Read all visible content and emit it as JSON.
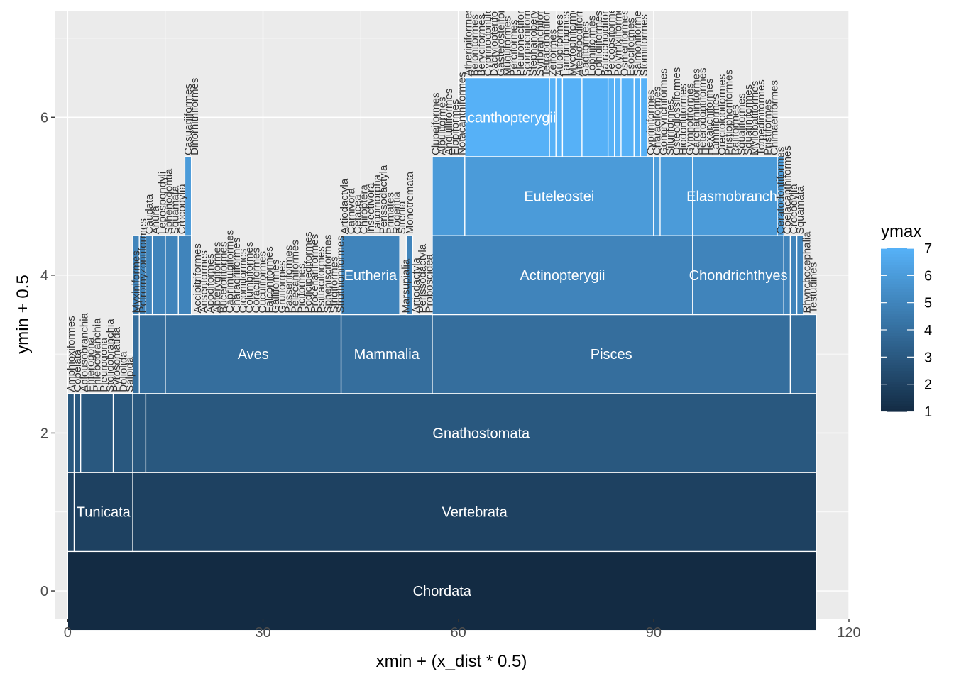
{
  "chart_data": {
    "type": "rect",
    "xlabel": "xmin + (x_dist * 0.5)",
    "ylabel": "ymin + 0.5",
    "xlim": [
      -2,
      120
    ],
    "ylim": [
      -0.35,
      7.35
    ],
    "x_ticks": [
      0,
      30,
      60,
      90,
      120
    ],
    "y_ticks": [
      0,
      2,
      4,
      6
    ],
    "grid": true,
    "legend": {
      "title": "ymax",
      "position": "right",
      "range": [
        1,
        7
      ],
      "ticks": [
        1,
        2,
        3,
        4,
        5,
        6,
        7
      ],
      "low_color": "#132B43",
      "high_color": "#56B1F7"
    },
    "rects": [
      {
        "x0": 0,
        "x1": 115,
        "level": 0,
        "label": "Chordata"
      },
      {
        "x0": 0,
        "x1": 1,
        "level": 1
      },
      {
        "x0": 1,
        "x1": 10,
        "level": 1,
        "label": "Tunicata"
      },
      {
        "x0": 10,
        "x1": 115,
        "level": 1,
        "label": "Vertebrata"
      },
      {
        "x0": 0,
        "x1": 1,
        "level": 2
      },
      {
        "x0": 1,
        "x1": 2,
        "level": 2
      },
      {
        "x0": 2,
        "x1": 7,
        "level": 2
      },
      {
        "x0": 7,
        "x1": 10,
        "level": 2
      },
      {
        "x0": 10,
        "x1": 12,
        "level": 2
      },
      {
        "x0": 12,
        "x1": 115,
        "level": 2,
        "label": "Gnathostomata"
      },
      {
        "x0": 10,
        "x1": 11,
        "level": 3
      },
      {
        "x0": 11,
        "x1": 15,
        "level": 3
      },
      {
        "x0": 15,
        "x1": 42,
        "level": 3,
        "label": "Aves"
      },
      {
        "x0": 42,
        "x1": 56,
        "level": 3,
        "label": "Mammalia"
      },
      {
        "x0": 56,
        "x1": 111,
        "level": 3,
        "label": "Pisces"
      },
      {
        "x0": 111,
        "x1": 115,
        "level": 3
      },
      {
        "x0": 10,
        "x1": 11,
        "level": 4
      },
      {
        "x0": 11,
        "x1": 12,
        "level": 4
      },
      {
        "x0": 12,
        "x1": 13,
        "level": 4
      },
      {
        "x0": 13,
        "x1": 15,
        "level": 4
      },
      {
        "x0": 15,
        "x1": 17,
        "level": 4
      },
      {
        "x0": 17,
        "x1": 19,
        "level": 4
      },
      {
        "x0": 42,
        "x1": 51,
        "level": 4,
        "label": "Eutheria"
      },
      {
        "x0": 52,
        "x1": 53,
        "level": 4
      },
      {
        "x0": 56,
        "x1": 96,
        "level": 4,
        "label": "Actinopterygii"
      },
      {
        "x0": 96,
        "x1": 110,
        "level": 4,
        "label": "Chondrichthyes"
      },
      {
        "x0": 110,
        "x1": 111,
        "level": 4
      },
      {
        "x0": 111,
        "x1": 112,
        "level": 4
      },
      {
        "x0": 112,
        "x1": 113,
        "level": 4
      },
      {
        "x0": 18,
        "x1": 19,
        "level": 5
      },
      {
        "x0": 56,
        "x1": 61,
        "level": 5
      },
      {
        "x0": 61,
        "x1": 90,
        "level": 5,
        "label": "Euteleostei"
      },
      {
        "x0": 90,
        "x1": 91,
        "level": 5
      },
      {
        "x0": 91,
        "x1": 96,
        "level": 5
      },
      {
        "x0": 96,
        "x1": 109,
        "level": 5,
        "label": "Elasmobranchii"
      },
      {
        "x0": 109,
        "x1": 110,
        "level": 5
      },
      {
        "x0": 61,
        "x1": 74,
        "level": 6,
        "label": "Acanthopterygii"
      },
      {
        "x0": 74,
        "x1": 75,
        "level": 6
      },
      {
        "x0": 75,
        "x1": 76,
        "level": 6
      },
      {
        "x0": 76,
        "x1": 79,
        "level": 6
      },
      {
        "x0": 79,
        "x1": 83,
        "level": 6
      },
      {
        "x0": 83,
        "x1": 84,
        "level": 6
      },
      {
        "x0": 84,
        "x1": 85,
        "level": 6
      },
      {
        "x0": 85,
        "x1": 87,
        "level": 6
      },
      {
        "x0": 87,
        "x1": 88,
        "level": 6
      },
      {
        "x0": 88,
        "x1": 89,
        "level": 6
      }
    ],
    "leaf_labels": [
      {
        "x": 0.5,
        "level": 3,
        "text": "Amphioxiformes"
      },
      {
        "x": 1.5,
        "level": 3,
        "text": "Copelata"
      },
      {
        "x": 2.5,
        "level": 3,
        "text": "Aplousobranchia"
      },
      {
        "x": 3.5,
        "level": 3,
        "text": "Enterogona"
      },
      {
        "x": 4.5,
        "level": 3,
        "text": "Phlebobranchia"
      },
      {
        "x": 5.5,
        "level": 3,
        "text": "Pleurogona"
      },
      {
        "x": 6.5,
        "level": 3,
        "text": "Stolidobranchia"
      },
      {
        "x": 7.5,
        "level": 3,
        "text": "Pyrosomatida"
      },
      {
        "x": 8.5,
        "level": 3,
        "text": "Doliolida"
      },
      {
        "x": 9.5,
        "level": 3,
        "text": "Salpida"
      },
      {
        "x": 10.5,
        "level": 4,
        "text": "Myxiniformes"
      },
      {
        "x": 11.5,
        "level": 4,
        "text": "Petromyzontiformes"
      },
      {
        "x": 12.5,
        "level": 5,
        "text": "Caudata"
      },
      {
        "x": 13.5,
        "level": 5,
        "text": "Anura"
      },
      {
        "x": 14.5,
        "level": 5,
        "text": "Lepospondyli"
      },
      {
        "x": 15.5,
        "level": 5,
        "text": "Sphenodontia"
      },
      {
        "x": 16.5,
        "level": 5,
        "text": "Squamata"
      },
      {
        "x": 17.5,
        "level": 5,
        "text": "Crocodylia"
      },
      {
        "x": 18.5,
        "level": 6,
        "text": "Casuariiformes"
      },
      {
        "x": 19.5,
        "level": 6,
        "text": "Dinornithiformes"
      },
      {
        "x": 19.9,
        "level": 4,
        "text": "Accipitriformes"
      },
      {
        "x": 20.9,
        "level": 4,
        "text": "Anseriformes"
      },
      {
        "x": 21.9,
        "level": 4,
        "text": "Apodiformes"
      },
      {
        "x": 22.9,
        "level": 4,
        "text": "Apterygiformes"
      },
      {
        "x": 23.9,
        "level": 4,
        "text": "Bucerotiformes"
      },
      {
        "x": 24.9,
        "level": 4,
        "text": "Caprimulgiformes"
      },
      {
        "x": 25.9,
        "level": 4,
        "text": "Charadriiformes"
      },
      {
        "x": 26.9,
        "level": 4,
        "text": "Ciconiiformes"
      },
      {
        "x": 27.9,
        "level": 4,
        "text": "Columbiformes"
      },
      {
        "x": 28.9,
        "level": 4,
        "text": "Coraciiformes"
      },
      {
        "x": 29.9,
        "level": 4,
        "text": "Cuculiformes"
      },
      {
        "x": 30.9,
        "level": 4,
        "text": "Falconiformes"
      },
      {
        "x": 31.9,
        "level": 4,
        "text": "Galliformes"
      },
      {
        "x": 32.9,
        "level": 4,
        "text": "Gruiformes"
      },
      {
        "x": 33.9,
        "level": 4,
        "text": "Passeriformes"
      },
      {
        "x": 34.9,
        "level": 4,
        "text": "Pelecaniformes"
      },
      {
        "x": 35.9,
        "level": 4,
        "text": "Piciformes"
      },
      {
        "x": 36.9,
        "level": 4,
        "text": "Podicipediformes"
      },
      {
        "x": 37.9,
        "level": 4,
        "text": "Procellariiformes"
      },
      {
        "x": 38.9,
        "level": 4,
        "text": "Psittaciformes"
      },
      {
        "x": 39.9,
        "level": 4,
        "text": "Sphenisciformes"
      },
      {
        "x": 40.9,
        "level": 4,
        "text": "Strigiformes"
      },
      {
        "x": 41.9,
        "level": 4,
        "text": "Struthioniformes"
      },
      {
        "x": 42.5,
        "level": 5,
        "text": "Artiodactyla"
      },
      {
        "x": 43.5,
        "level": 5,
        "text": "Carnivora"
      },
      {
        "x": 44.5,
        "level": 5,
        "text": "Cetacea"
      },
      {
        "x": 45.5,
        "level": 5,
        "text": "Chiroptera"
      },
      {
        "x": 46.5,
        "level": 5,
        "text": "Insectivora"
      },
      {
        "x": 47.5,
        "level": 5,
        "text": "Lagomorpha"
      },
      {
        "x": 48.5,
        "level": 5,
        "text": "Perissodactyla"
      },
      {
        "x": 49.5,
        "level": 5,
        "text": "Primates"
      },
      {
        "x": 50.5,
        "level": 5,
        "text": "Rodentia"
      },
      {
        "x": 51.3,
        "level": 5,
        "text": "Sirenia"
      },
      {
        "x": 51.9,
        "level": 4,
        "text": "Marsupialia"
      },
      {
        "x": 52.5,
        "level": 5,
        "text": "Monotremata"
      },
      {
        "x": 53.5,
        "level": 4,
        "text": "Artiodactyla"
      },
      {
        "x": 54.5,
        "level": 4,
        "text": "Perissodactyla"
      },
      {
        "x": 55.5,
        "level": 4,
        "text": "Proboscidea"
      },
      {
        "x": 56.5,
        "level": 6,
        "text": "Clupeiformes"
      },
      {
        "x": 57.5,
        "level": 6,
        "text": "Albuliformes"
      },
      {
        "x": 58.5,
        "level": 6,
        "text": "Anguilliformes"
      },
      {
        "x": 59.5,
        "level": 6,
        "text": "Elopiformes"
      },
      {
        "x": 60.5,
        "level": 6,
        "text": "Notacanthiformes"
      },
      {
        "x": 61.5,
        "level": 7,
        "text": "Atheriniformes"
      },
      {
        "x": 62.5,
        "level": 7,
        "text": "Beloniformes"
      },
      {
        "x": 63.5,
        "level": 7,
        "text": "Beryciformes"
      },
      {
        "x": 64.5,
        "level": 7,
        "text": "Cyprinodontiformes"
      },
      {
        "x": 65.5,
        "level": 7,
        "text": "Dactylopteriformes"
      },
      {
        "x": 66.5,
        "level": 7,
        "text": "Gasterosteiformes"
      },
      {
        "x": 67.5,
        "level": 7,
        "text": "Mugiliformes"
      },
      {
        "x": 68.5,
        "level": 7,
        "text": "Perciformes"
      },
      {
        "x": 69.5,
        "level": 7,
        "text": "Pleuronectiformes"
      },
      {
        "x": 70.5,
        "level": 7,
        "text": "Scorpaeniformes"
      },
      {
        "x": 71.5,
        "level": 7,
        "text": "Stephanoberyciformes"
      },
      {
        "x": 72.5,
        "level": 7,
        "text": "Synbranchiformes"
      },
      {
        "x": 73.5,
        "level": 7,
        "text": "Tetraodontiformes"
      },
      {
        "x": 74.5,
        "level": 7,
        "text": "Zeiformes"
      },
      {
        "x": 75.5,
        "level": 7,
        "text": "Aulopiformes"
      },
      {
        "x": 76.5,
        "level": 7,
        "text": "Lampriformes"
      },
      {
        "x": 77.5,
        "level": 7,
        "text": "Myctophiformes"
      },
      {
        "x": 78.5,
        "level": 7,
        "text": "Ateleopodiformes"
      },
      {
        "x": 79.5,
        "level": 7,
        "text": "Gadiformes"
      },
      {
        "x": 80.5,
        "level": 7,
        "text": "Lophiiformes"
      },
      {
        "x": 81.5,
        "level": 7,
        "text": "Ophidiiformes"
      },
      {
        "x": 82.5,
        "level": 7,
        "text": "Batrachoidiformes"
      },
      {
        "x": 83.5,
        "level": 7,
        "text": "Percopsiformes"
      },
      {
        "x": 84.5,
        "level": 7,
        "text": "Polymixiiformes"
      },
      {
        "x": 85.5,
        "level": 7,
        "text": "Osmeriformes"
      },
      {
        "x": 86.5,
        "level": 7,
        "text": "Esociformes"
      },
      {
        "x": 87.5,
        "level": 7,
        "text": "Salmoniformes"
      },
      {
        "x": 88.5,
        "level": 7,
        "text": "Stomiiformes"
      },
      {
        "x": 89.5,
        "level": 6,
        "text": "Cypriniformes"
      },
      {
        "x": 90.5,
        "level": 6,
        "text": "Characiformes"
      },
      {
        "x": 91.5,
        "level": 6,
        "text": "Gonorynchiformes"
      },
      {
        "x": 92.5,
        "level": 6,
        "text": "Siluriformes"
      },
      {
        "x": 93.5,
        "level": 6,
        "text": "Osteoglossiformes"
      },
      {
        "x": 94.5,
        "level": 6,
        "text": "Hiodontiformes"
      },
      {
        "x": 95.5,
        "level": 6,
        "text": "Gymnotiformes"
      },
      {
        "x": 96.5,
        "level": 6,
        "text": "Carcharhiniformes"
      },
      {
        "x": 97.5,
        "level": 6,
        "text": "Heterodontiformes"
      },
      {
        "x": 98.5,
        "level": 6,
        "text": "Hexanchiformes"
      },
      {
        "x": 99.5,
        "level": 6,
        "text": "Lamniformes"
      },
      {
        "x": 100.5,
        "level": 6,
        "text": "Orectolobiformes"
      },
      {
        "x": 101.5,
        "level": 6,
        "text": "Pristiophoriformes"
      },
      {
        "x": 102.5,
        "level": 6,
        "text": "Rajiformes"
      },
      {
        "x": 103.5,
        "level": 6,
        "text": "Squaliformes"
      },
      {
        "x": 104.5,
        "level": 6,
        "text": "Squatiniformes"
      },
      {
        "x": 105.5,
        "level": 6,
        "text": "Myliobatiformes"
      },
      {
        "x": 106.5,
        "level": 6,
        "text": "Torpediniformes"
      },
      {
        "x": 107.5,
        "level": 6,
        "text": "Pristiformes"
      },
      {
        "x": 108.5,
        "level": 6,
        "text": "Chimaeriformes"
      },
      {
        "x": 109.5,
        "level": 5,
        "text": "Ceratodontiformes"
      },
      {
        "x": 110.5,
        "level": 5,
        "text": "Coelacanthiformes"
      },
      {
        "x": 111.5,
        "level": 5,
        "text": "Crocodylia"
      },
      {
        "x": 112.5,
        "level": 5,
        "text": "Squamata"
      },
      {
        "x": 113.5,
        "level": 4,
        "text": "Rhynchocephalia"
      },
      {
        "x": 114.5,
        "level": 4,
        "text": "Testudines"
      }
    ]
  }
}
